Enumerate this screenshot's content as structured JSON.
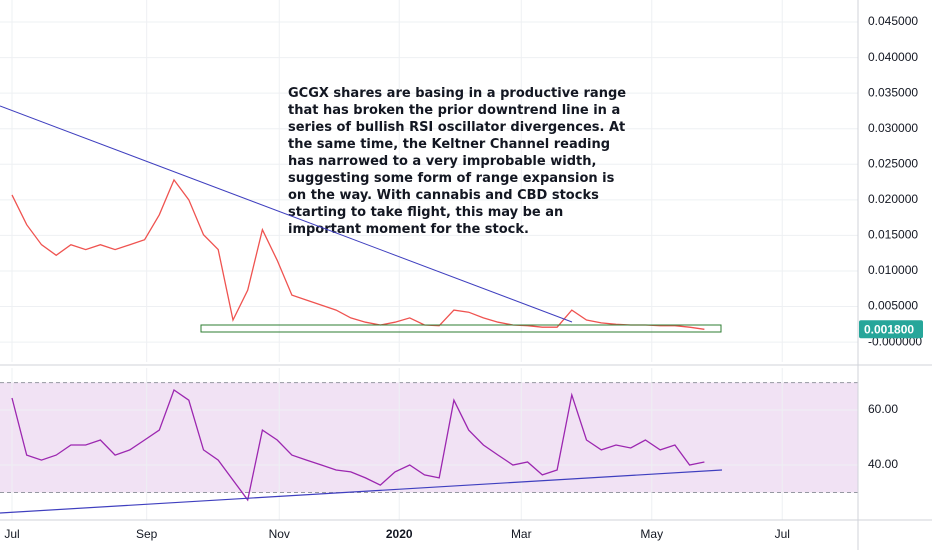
{
  "chart_data": [
    {
      "type": "line",
      "annotation": [
        "GCGX shares are basing in a productive range",
        "that has broken the prior downtrend line in a",
        "series of bullish RSI oscillator divergences. At",
        "the same time, the Keltner Channel reading",
        "has narrowed to a very improbable width,",
        "suggesting some form of range expansion is",
        "on the way. With cannabis and CBD stocks",
        "starting to take flight, this may be an",
        "important moment for the stock."
      ],
      "x": [
        0,
        7,
        14,
        21,
        28,
        35,
        42,
        49,
        56,
        63,
        70,
        77,
        84,
        91,
        98,
        105,
        112,
        119,
        126,
        133,
        140,
        147,
        154,
        161,
        168,
        175,
        182,
        189,
        196,
        203,
        210,
        217,
        224,
        231,
        238,
        245,
        252,
        259,
        266,
        273,
        280,
        287,
        294,
        301,
        308,
        315,
        322,
        329
      ],
      "series": [
        {
          "color": "#ef5350",
          "values": [
            0.0207,
            0.0165,
            0.0137,
            0.0122,
            0.0137,
            0.013,
            0.0137,
            0.013,
            0.0137,
            0.0144,
            0.0179,
            0.0228,
            0.02,
            0.0151,
            0.013,
            0.0031,
            0.0073,
            0.0158,
            0.0115,
            0.0066,
            0.0059,
            0.0052,
            0.0045,
            0.0034,
            0.0028,
            0.0024,
            0.0028,
            0.0034,
            0.0024,
            0.0023,
            0.0045,
            0.0042,
            0.0034,
            0.0028,
            0.0024,
            0.0023,
            0.0021,
            0.0021,
            0.0045,
            0.0031,
            0.0027,
            0.0025,
            0.0024,
            0.0024,
            0.0023,
            0.0023,
            0.0021,
            0.0018
          ]
        }
      ],
      "last_price": {
        "value": 0.0018,
        "label": "0.001800"
      },
      "xlim": [
        -5.7,
        402
      ],
      "ylim": [
        -0.0028,
        0.0481
      ],
      "yticks": [
        {
          "value": 0,
          "label": "-0.000000"
        },
        {
          "value": 0.005,
          "label": "0.005000"
        },
        {
          "value": 0.01,
          "label": "0.010000"
        },
        {
          "value": 0.015,
          "label": "0.015000"
        },
        {
          "value": 0.02,
          "label": "0.020000"
        },
        {
          "value": 0.025,
          "label": "0.025000"
        },
        {
          "value": 0.03,
          "label": "0.030000"
        },
        {
          "value": 0.035,
          "label": "0.035000"
        },
        {
          "value": 0.04,
          "label": "0.040000"
        },
        {
          "value": 0.045,
          "label": "0.045000"
        }
      ],
      "grid": true
    },
    {
      "type": "line",
      "x": [
        0,
        7,
        14,
        21,
        28,
        35,
        42,
        49,
        56,
        63,
        70,
        77,
        84,
        91,
        98,
        105,
        112,
        119,
        126,
        133,
        140,
        147,
        154,
        161,
        168,
        175,
        182,
        189,
        196,
        203,
        210,
        217,
        224,
        231,
        238,
        245,
        252,
        259,
        266,
        273,
        280,
        287,
        294,
        301,
        308,
        315,
        322,
        329
      ],
      "series": [
        {
          "color": "#9c27b0",
          "values": [
            64.4,
            43.6,
            41.8,
            43.6,
            47.3,
            47.3,
            49.1,
            43.6,
            45.5,
            49.1,
            52.7,
            67.3,
            63.6,
            45.5,
            41.8,
            34.5,
            27.3,
            52.7,
            49.1,
            43.6,
            41.8,
            40.0,
            38.2,
            37.5,
            35.3,
            32.7,
            37.5,
            40.0,
            36.4,
            35.3,
            63.6,
            52.7,
            47.3,
            43.6,
            40.0,
            41.1,
            36.4,
            38.2,
            65.5,
            49.1,
            45.5,
            47.3,
            46.2,
            49.1,
            45.5,
            47.3,
            40.0,
            41.1
          ]
        }
      ],
      "band": [
        30,
        70
      ],
      "band_color": "#e1bee7",
      "xlim": [
        -5.7,
        402
      ],
      "ylim": [
        20,
        75.3
      ],
      "xticks": [
        {
          "value": 0,
          "label": "Jul"
        },
        {
          "value": 64,
          "label": "Sep"
        },
        {
          "value": 127,
          "label": "Nov"
        },
        {
          "value": 184,
          "label": "2020"
        },
        {
          "value": 242,
          "label": "Mar"
        },
        {
          "value": 304,
          "label": "May"
        },
        {
          "value": 366,
          "label": "Jul"
        }
      ],
      "yticks": [
        {
          "value": 40,
          "label": "40.00"
        },
        {
          "value": 60,
          "label": "60.00"
        }
      ],
      "grid": true
    }
  ]
}
